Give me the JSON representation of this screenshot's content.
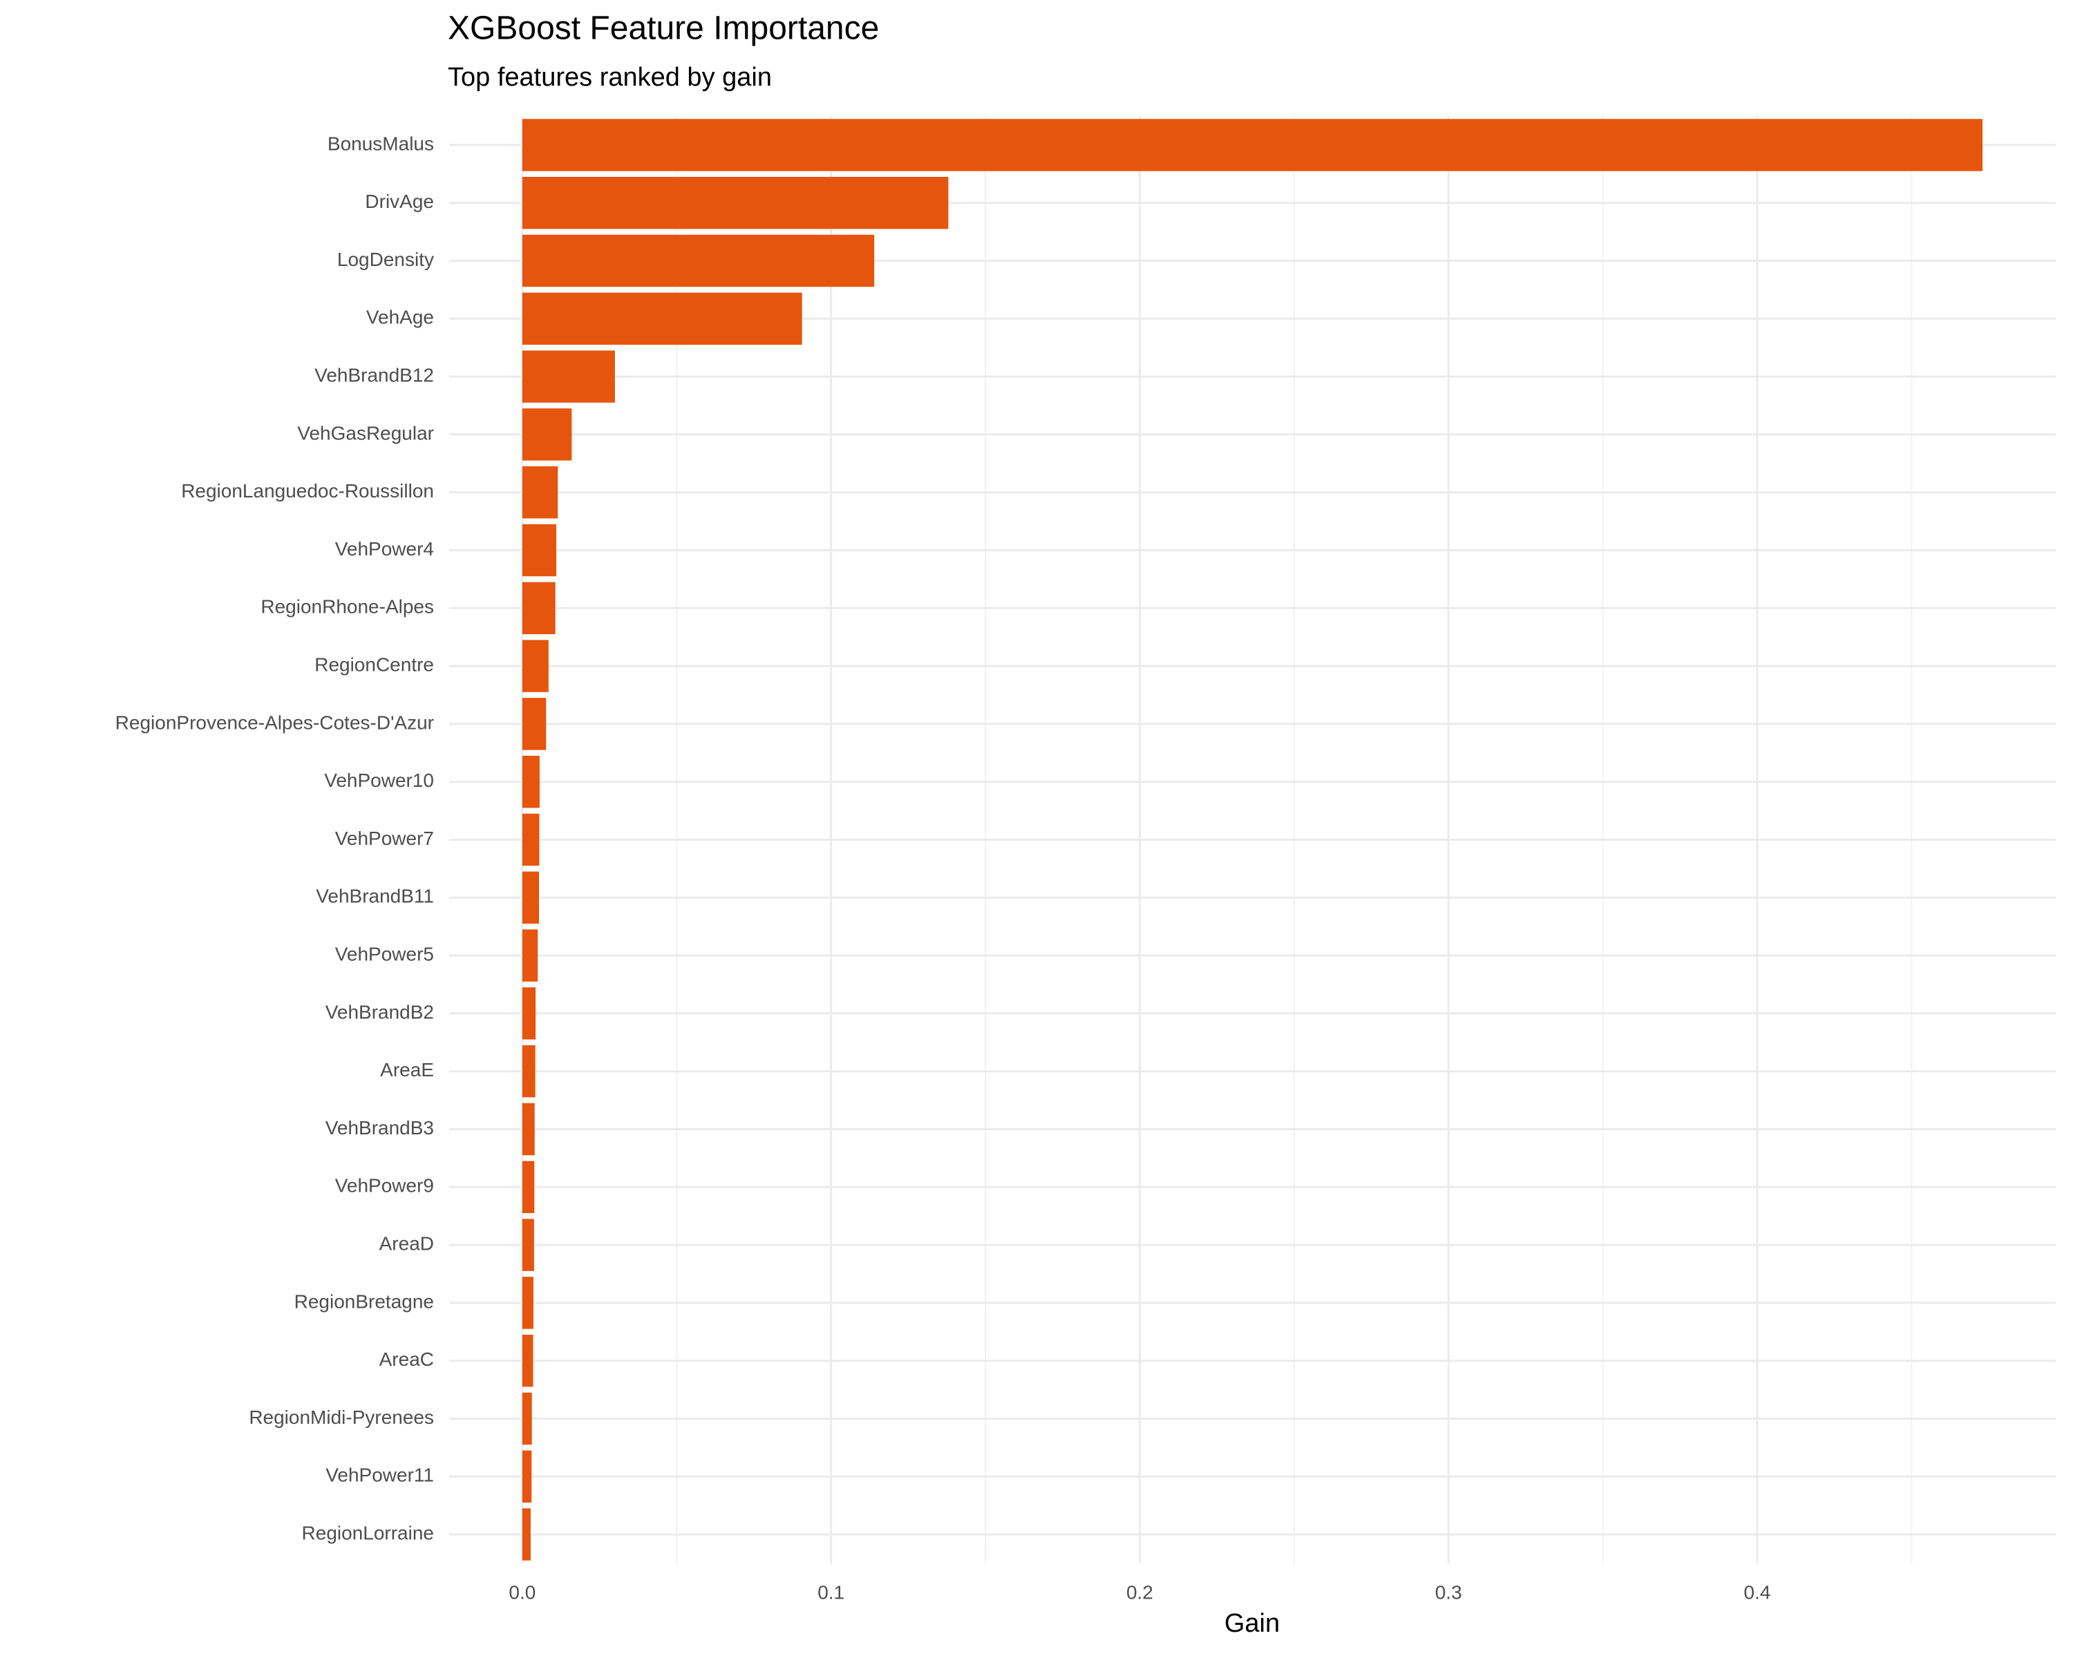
{
  "chart_data": {
    "type": "bar",
    "orientation": "horizontal",
    "title": "XGBoost Feature Importance",
    "subtitle": "Top features ranked by gain",
    "x_label": "Gain",
    "categories": [
      "BonusMalus",
      "DrivAge",
      "LogDensity",
      "VehAge",
      "VehBrandB12",
      "VehGasRegular",
      "RegionLanguedoc-Roussillon",
      "VehPower4",
      "RegionRhone-Alpes",
      "RegionCentre",
      "RegionProvence-Alpes-Cotes-D'Azur",
      "VehPower10",
      "VehPower7",
      "VehBrandB11",
      "VehPower5",
      "VehBrandB2",
      "AreaE",
      "VehBrandB3",
      "VehPower9",
      "AreaD",
      "RegionBretagne",
      "AreaC",
      "RegionMidi-Pyrenees",
      "VehPower11",
      "RegionLorraine"
    ],
    "values": [
      0.473,
      0.138,
      0.114,
      0.0906,
      0.03,
      0.016,
      0.0115,
      0.011,
      0.0107,
      0.0085,
      0.0077,
      0.0056,
      0.0055,
      0.0054,
      0.005,
      0.0043,
      0.0042,
      0.004,
      0.0039,
      0.0038,
      0.0036,
      0.0035,
      0.0031,
      0.003,
      0.0027
    ],
    "color": "#e6550d",
    "xlim": [
      -0.0237,
      0.4967
    ],
    "xticks": [
      {
        "value": 0,
        "label": "0.0"
      },
      0.1,
      0.2,
      0.3,
      0.4
    ],
    "minor_xticks": [
      0.05,
      0.15,
      0.25,
      0.35,
      0.45
    ],
    "grid": true
  }
}
